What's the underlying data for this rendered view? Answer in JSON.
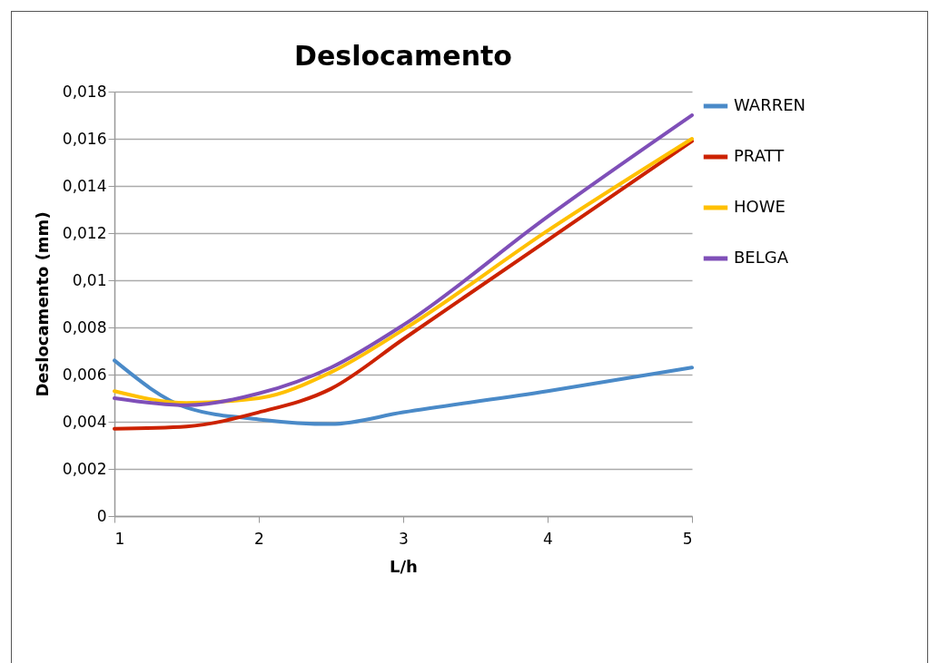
{
  "chart_data": {
    "type": "line",
    "title": "Deslocamento",
    "xlabel": "L/h",
    "ylabel": "Deslocamento (mm)",
    "x": [
      1,
      1.5,
      2,
      2.5,
      3,
      4,
      5
    ],
    "series": [
      {
        "name": "WARREN",
        "color": "#4a8ac8",
        "values": [
          0.0066,
          0.0046,
          0.0041,
          0.0039,
          0.0044,
          0.0053,
          0.0063
        ]
      },
      {
        "name": "PRATT",
        "color": "#cc2200",
        "values": [
          0.0037,
          0.0038,
          0.0044,
          0.0054,
          0.0075,
          0.0117,
          0.0159
        ]
      },
      {
        "name": "HOWE",
        "color": "#ffc000",
        "values": [
          0.0053,
          0.0048,
          0.005,
          0.0061,
          0.0079,
          0.0121,
          0.016
        ]
      },
      {
        "name": "BELGA",
        "color": "#7f4fb8",
        "values": [
          0.005,
          0.0047,
          0.0052,
          0.0063,
          0.0081,
          0.0127,
          0.017
        ]
      }
    ],
    "xlim": [
      1,
      5
    ],
    "xticks": [
      1,
      2,
      3,
      4,
      5
    ],
    "ylim": [
      0,
      0.018
    ],
    "yticks": [
      0,
      {
        "value": 0.002,
        "label": "0,002"
      },
      {
        "value": 0.004,
        "label": "0,004"
      },
      {
        "value": 0.006,
        "label": "0,006"
      },
      {
        "value": 0.008,
        "label": "0,008"
      },
      {
        "value": 0.01,
        "label": "0,01"
      },
      {
        "value": 0.012,
        "label": "0,012"
      },
      {
        "value": 0.014,
        "label": "0,014"
      },
      {
        "value": 0.016,
        "label": "0,016"
      },
      {
        "value": 0.018,
        "label": "0,018"
      }
    ],
    "grid": "y",
    "legend": "right",
    "marker": "none",
    "line_style": "solid"
  }
}
